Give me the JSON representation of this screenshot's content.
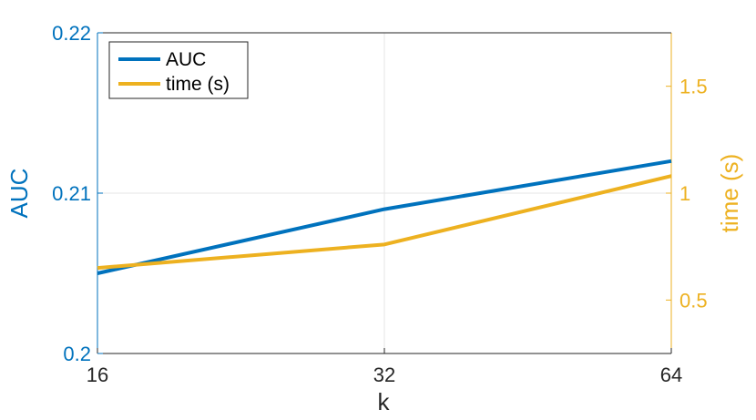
{
  "chart_data": {
    "type": "line",
    "x": [
      16,
      32,
      64
    ],
    "x_ticks": [
      "16",
      "32",
      "64"
    ],
    "xlabel": "k",
    "x_scale": "log2",
    "y_left": {
      "label": "AUC",
      "ylim": [
        0.2,
        0.22
      ],
      "ticks": [
        "0.2",
        "0.21",
        "0.22"
      ],
      "color": "#0072BD"
    },
    "y_right": {
      "label": "time (s)",
      "ylim": [
        0.25,
        1.75
      ],
      "ticks": [
        "0.5",
        "1",
        "1.5"
      ],
      "color": "#EDB120"
    },
    "series": [
      {
        "name": "AUC",
        "axis": "left",
        "color": "#0072BD",
        "values": [
          0.205,
          0.209,
          0.212
        ]
      },
      {
        "name": "time (s)",
        "axis": "right",
        "color": "#EDB120",
        "values": [
          0.65,
          0.76,
          1.08
        ]
      }
    ],
    "grid": true,
    "legend": "top-left"
  }
}
